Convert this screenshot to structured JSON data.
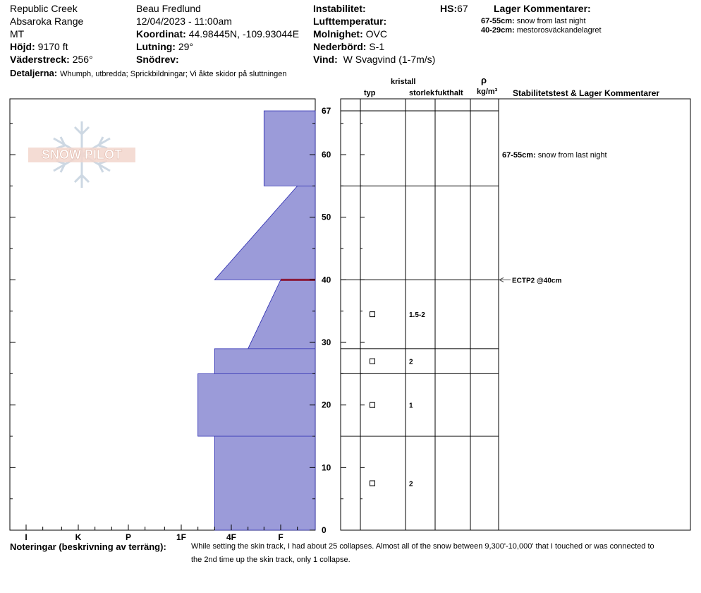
{
  "header": {
    "location": "Republic Creek",
    "range": "Absaroka Range",
    "state": "MT",
    "elevation_label": "Höjd:",
    "elevation": "9170 ft",
    "aspect_label": "Väderstreck:",
    "aspect": "256°",
    "observer": "Beau  Fredlund",
    "datetime": "12/04/2023 - 11:00am",
    "coord_label": "Koordinat:",
    "coord": "44.98445N, -109.93044E",
    "slope_label": "Lutning:",
    "slope": "29°",
    "drift_label": "Snödrev:",
    "drift": "",
    "instability_label": "Instabilitet:",
    "instability": "",
    "air_temp_label": "Lufttemperatur:",
    "air_temp": "",
    "sky_label": "Molnighet:",
    "sky": "OVC",
    "precip_label": "Nederbörd:",
    "precip": "S-1",
    "wind_label": "Vind:",
    "wind": "W Svagvind (1-7m/s)",
    "hs_label": "HS:",
    "hs": "67",
    "layer_comments_title": "Lager Kommentarer:",
    "layer_comments": [
      {
        "range": "67-55cm:",
        "text": "snow from last night"
      },
      {
        "range": "40-29cm:",
        "text": "mestorosväckandelagret"
      }
    ],
    "details_label": "Detaljerna:",
    "details": "Whumph, utbredda;  Sprickbildningar;  Vi åkte skidor på sluttningen"
  },
  "columns": {
    "crystal": "kristall",
    "type": "typ",
    "size": "storlek",
    "moisture": "fukthalt",
    "rho": "ρ",
    "density_unit": "kg/m³",
    "stability_title": "Stabilitetstest & Lager Kommentarer"
  },
  "logo": {
    "text": "SNOW PILOT"
  },
  "notes": {
    "label": "Noteringar (beskrivning av terräng):",
    "line1": "While setting the skin track, I had about 25 collapses.  Almost all of the snow between 9,300'-10,000' that I touched or was connected to",
    "line2": "the 2nd time up the skin track, only 1 collapse."
  },
  "chart_data": {
    "type": "snow-profile",
    "y_unit": "cm",
    "ylim": [
      0,
      67
    ],
    "y_ticks": [
      0,
      10,
      20,
      30,
      40,
      50,
      60,
      67
    ],
    "hardness_scale": [
      "I",
      "K",
      "P",
      "1F",
      "4F",
      "F"
    ],
    "hardness_index_note": "0=F, 1=4F, 2=1F, 3=P, 4=K, 5=I",
    "layers": [
      {
        "top": 67,
        "bottom": 55,
        "hardness_top": "F+",
        "hardness_bottom": "F+"
      },
      {
        "top": 55,
        "bottom": 40,
        "hardness_top": "F-",
        "hardness_bottom": "4F+"
      },
      {
        "top": 40,
        "bottom": 29,
        "hardness_top": "F",
        "hardness_bottom": "4F-"
      },
      {
        "top": 29,
        "bottom": 25,
        "hardness_top": "4F+",
        "hardness_bottom": "4F+"
      },
      {
        "top": 25,
        "bottom": 15,
        "hardness_top": "1F-",
        "hardness_bottom": "1F-"
      },
      {
        "top": 15,
        "bottom": 0,
        "hardness_top": "4F+",
        "hardness_bottom": "4F+"
      }
    ],
    "layer_boundaries": [
      67,
      55,
      40,
      29,
      25,
      15
    ],
    "weak_layer_cm": 40,
    "crystals": [
      {
        "depth": 34.5,
        "size": "1.5-2"
      },
      {
        "depth": 27,
        "size": "2"
      },
      {
        "depth": 20,
        "size": "1"
      },
      {
        "depth": 7.5,
        "size": "2"
      }
    ],
    "layer_notes": [
      {
        "depth": 60,
        "range": "67-55cm:",
        "text": "snow from last night"
      }
    ],
    "tests": [
      {
        "depth": 40,
        "label": "ECTP2 @40cm"
      }
    ]
  }
}
